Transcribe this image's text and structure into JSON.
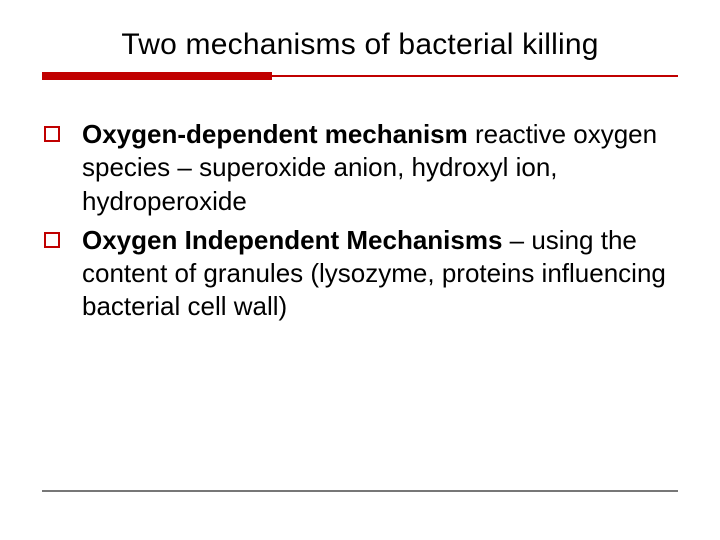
{
  "slide": {
    "title": "Two mechanisms of bacterial killing",
    "title_fontsize": 30,
    "title_color": "#000000",
    "divider_color": "#c00000",
    "divider_thick_width": 230,
    "divider_thick_height": 8,
    "background_color": "#ffffff",
    "footer_line_color": "#777777",
    "bullets": [
      {
        "bold": "Oxygen-dependent mechanism",
        "rest": " reactive oxygen species – superoxide anion, hydroxyl ion, hydroperoxide"
      },
      {
        "bold": "Oxygen Independent Mechanisms",
        "rest": " – using the content of granules (lysozyme, proteins influencing bacterial cell wall)"
      }
    ],
    "bullet_marker_color": "#c00000",
    "body_fontsize": 26,
    "body_color": "#000000"
  }
}
